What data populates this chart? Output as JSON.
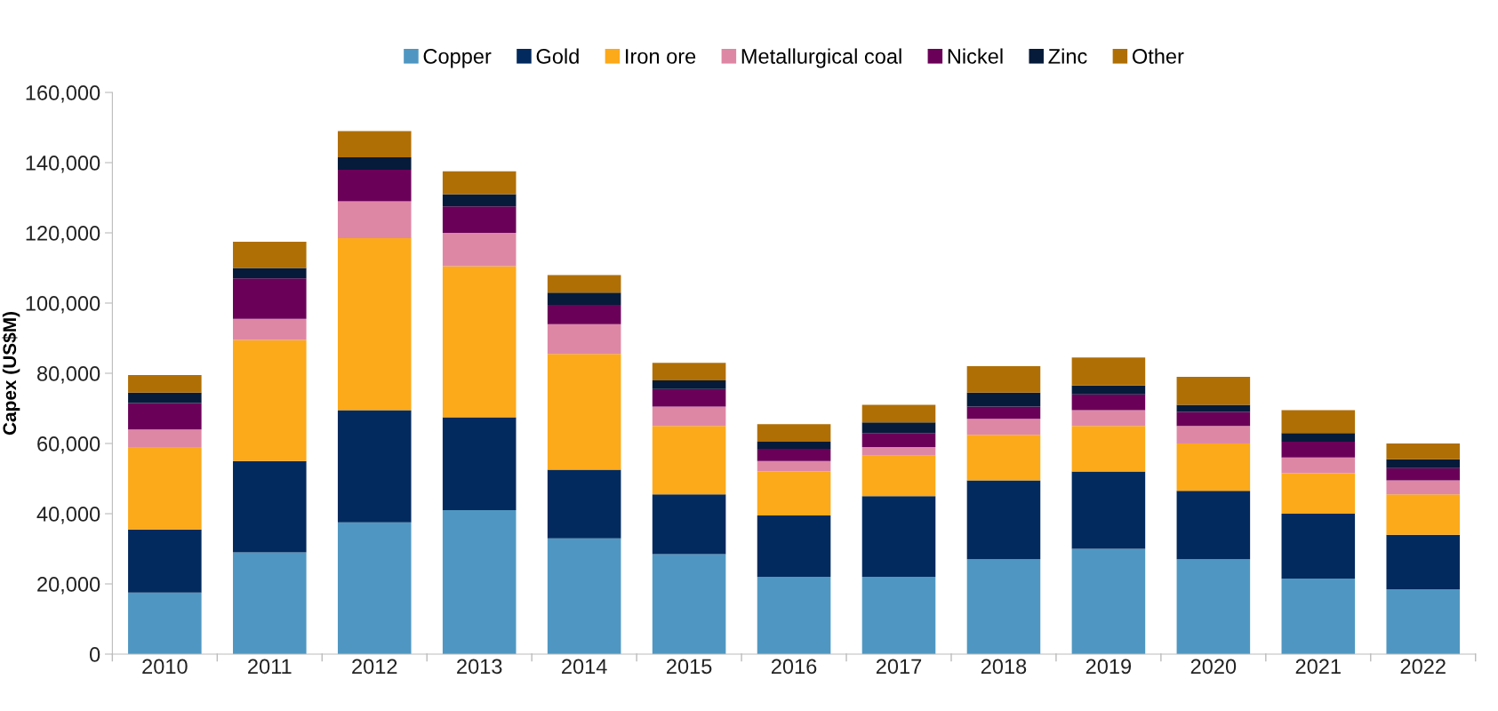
{
  "chart_data": {
    "type": "bar",
    "stacked": true,
    "ylabel": "Capex (US$M)",
    "categories": [
      "2010",
      "2011",
      "2012",
      "2013",
      "2014",
      "2015",
      "2016",
      "2017",
      "2018",
      "2019",
      "2020",
      "2021",
      "2022"
    ],
    "series": [
      {
        "name": "Copper",
        "color": "#4f97c2",
        "values": [
          17500,
          29000,
          37500,
          41000,
          33000,
          28500,
          22000,
          22000,
          27000,
          30000,
          27000,
          21500,
          18500
        ]
      },
      {
        "name": "Gold",
        "color": "#022a5e",
        "values": [
          18000,
          26000,
          32000,
          26500,
          19500,
          17000,
          17500,
          23000,
          22500,
          22000,
          19500,
          18500,
          15500
        ]
      },
      {
        "name": "Iron ore",
        "color": "#fca91a",
        "values": [
          23500,
          34500,
          49000,
          43000,
          33000,
          19500,
          12500,
          11500,
          13000,
          13000,
          13500,
          11500,
          11500
        ]
      },
      {
        "name": "Metallurgical coal",
        "color": "#de87a5",
        "values": [
          5000,
          6000,
          10500,
          9500,
          8500,
          5500,
          3000,
          2500,
          4500,
          4500,
          5000,
          4500,
          4000
        ]
      },
      {
        "name": "Nickel",
        "color": "#6b0058",
        "values": [
          7500,
          11500,
          9000,
          7500,
          5500,
          5000,
          3500,
          4000,
          3500,
          4500,
          4000,
          4500,
          3500
        ]
      },
      {
        "name": "Zinc",
        "color": "#061b3a",
        "values": [
          3000,
          3000,
          3500,
          3500,
          3500,
          2500,
          2000,
          3000,
          4000,
          2500,
          2000,
          2500,
          2500
        ]
      },
      {
        "name": "Other",
        "color": "#b06f04",
        "values": [
          5000,
          7500,
          7500,
          6500,
          5000,
          5000,
          5000,
          5000,
          7500,
          8000,
          8000,
          6500,
          4500
        ]
      }
    ],
    "ylim": [
      0,
      160000
    ],
    "yticks": [
      0,
      {
        "value": 20000,
        "label": "20,000"
      },
      {
        "value": 40000,
        "label": "40,000"
      },
      {
        "value": 60000,
        "label": "60,000"
      },
      {
        "value": 80000,
        "label": "80,000"
      },
      {
        "value": 100000,
        "label": "100,000"
      },
      {
        "value": 120000,
        "label": "120,000"
      },
      {
        "value": 140000,
        "label": "140,000"
      },
      {
        "value": 160000,
        "label": "160,000"
      }
    ],
    "legend": "top",
    "grid": false
  }
}
